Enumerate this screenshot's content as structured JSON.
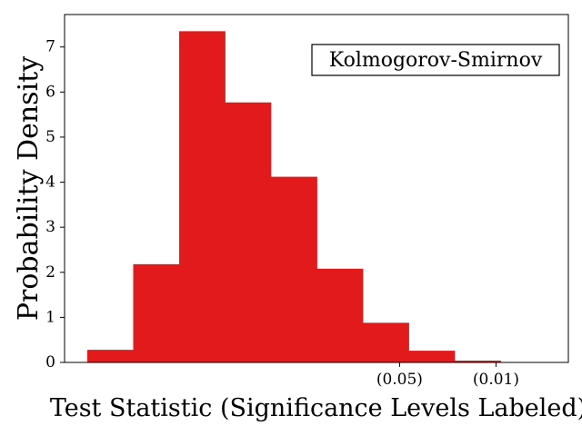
{
  "chart_data": {
    "type": "bar",
    "subtype": "histogram",
    "xlabel": "Test Statistic (Significance Levels Labeled)",
    "ylabel": "Probability Density",
    "annotation": "Kolmogorov-Smirnov",
    "annotation_placement": "top-right, boxed",
    "bins": [
      {
        "bin": 1,
        "density": 0.28
      },
      {
        "bin": 2,
        "density": 2.18
      },
      {
        "bin": 3,
        "density": 7.35
      },
      {
        "bin": 4,
        "density": 5.77
      },
      {
        "bin": 5,
        "density": 4.12
      },
      {
        "bin": 6,
        "density": 2.08
      },
      {
        "bin": 7,
        "density": 0.88
      },
      {
        "bin": 8,
        "density": 0.26
      },
      {
        "bin": 9,
        "density": 0.04
      },
      {
        "bin": 10,
        "density": 0.01
      }
    ],
    "x_tick_labels": [
      {
        "label": "(0.05)",
        "bin_position": 7.3
      },
      {
        "label": "(0.01)",
        "bin_position": 9.4
      }
    ],
    "y_ticks": [
      0,
      1,
      2,
      3,
      4,
      5,
      6,
      7
    ],
    "ylim": [
      0,
      7.72
    ],
    "grid": false,
    "legend": false,
    "bar_color": "#e31a1c"
  }
}
